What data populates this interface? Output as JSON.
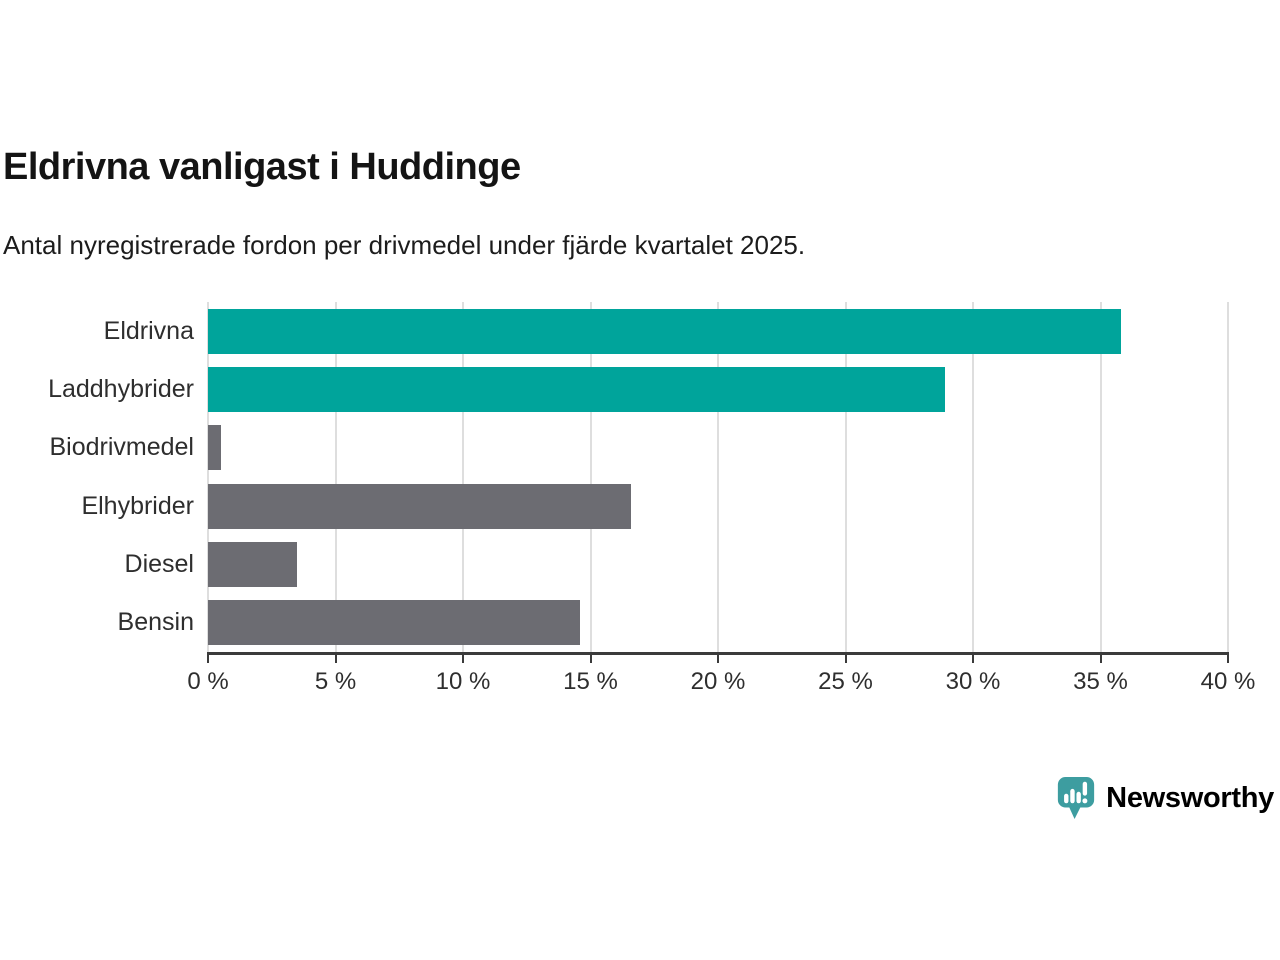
{
  "header": {
    "title": "Eldrivna vanligast i Huddinge",
    "subtitle": "Antal nyregistrerade fordon per drivmedel under fjärde kvartalet 2025."
  },
  "chart_data": {
    "type": "bar",
    "orientation": "horizontal",
    "title": "Eldrivna vanligast i Huddinge",
    "subtitle": "Antal nyregistrerade fordon per drivmedel under fjärde kvartalet 2025.",
    "categories": [
      "Eldrivna",
      "Laddhybrider",
      "Biodrivmedel",
      "Elhybrider",
      "Diesel",
      "Bensin"
    ],
    "values": [
      35.8,
      28.9,
      0.5,
      16.6,
      3.5,
      14.6
    ],
    "unit": "%",
    "bar_colors": [
      "#00a49b",
      "#00a49b",
      "#6c6c72",
      "#6c6c72",
      "#6c6c72",
      "#6c6c72"
    ],
    "x_ticks": [
      "0 %",
      "5 %",
      "10 %",
      "15 %",
      "20 %",
      "25 %",
      "30 %",
      "35 %",
      "40 %"
    ],
    "x_tick_values": [
      0,
      5,
      10,
      15,
      20,
      25,
      30,
      35,
      40
    ],
    "xlim": [
      0,
      40
    ],
    "xlabel": "",
    "ylabel": "",
    "grid": "vertical",
    "legend": "none"
  },
  "branding": {
    "logo_text": "Newsworthy",
    "logo_icon": "bar-chart-speech-bubble-icon",
    "logo_color": "#3b9ea0",
    "accent_color": "#00a49b",
    "muted_bar_color": "#6c6c72"
  }
}
